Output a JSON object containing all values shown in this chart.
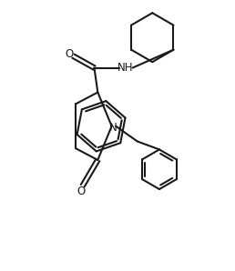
{
  "background_color": "#ffffff",
  "line_color": "#1a1a1a",
  "line_width": 1.5,
  "text_color": "#1a1a1a",
  "font_size": 8.5,
  "figsize": [
    2.58,
    2.98
  ],
  "dpi": 100,
  "xlim": [
    0,
    10
  ],
  "ylim": [
    0,
    11.5
  ]
}
